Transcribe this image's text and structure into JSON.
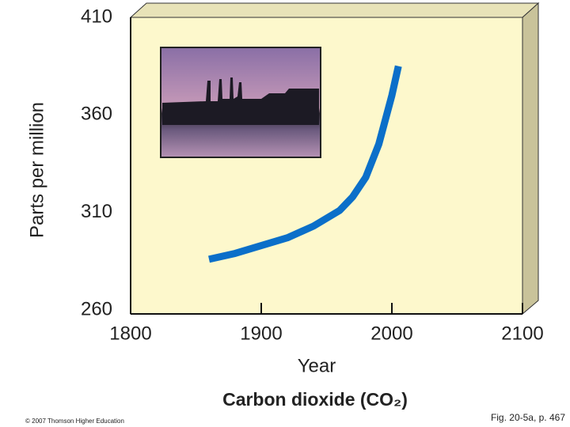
{
  "chart_data": {
    "type": "line",
    "title": "Carbon dioxide (CO₂)",
    "x_label": "Year",
    "y_label": "Parts per million",
    "credit": "© 2007 Thomson Higher Education",
    "figure_ref": "Fig. 20-5a, p. 467",
    "x": [
      1860,
      1880,
      1900,
      1920,
      1940,
      1960,
      1970,
      1980,
      1990,
      2000,
      2005
    ],
    "series": [
      {
        "name": "CO2",
        "color": "#0b6fc9",
        "values": [
          286,
          289,
          293,
          297,
          303,
          311,
          318,
          328,
          345,
          370,
          385
        ]
      }
    ],
    "xlim": [
      1800,
      2100
    ],
    "xticks": [
      1800,
      1900,
      2000,
      2100
    ],
    "ylim": [
      260,
      410
    ],
    "yticks": [
      260,
      310,
      360,
      410
    ]
  }
}
